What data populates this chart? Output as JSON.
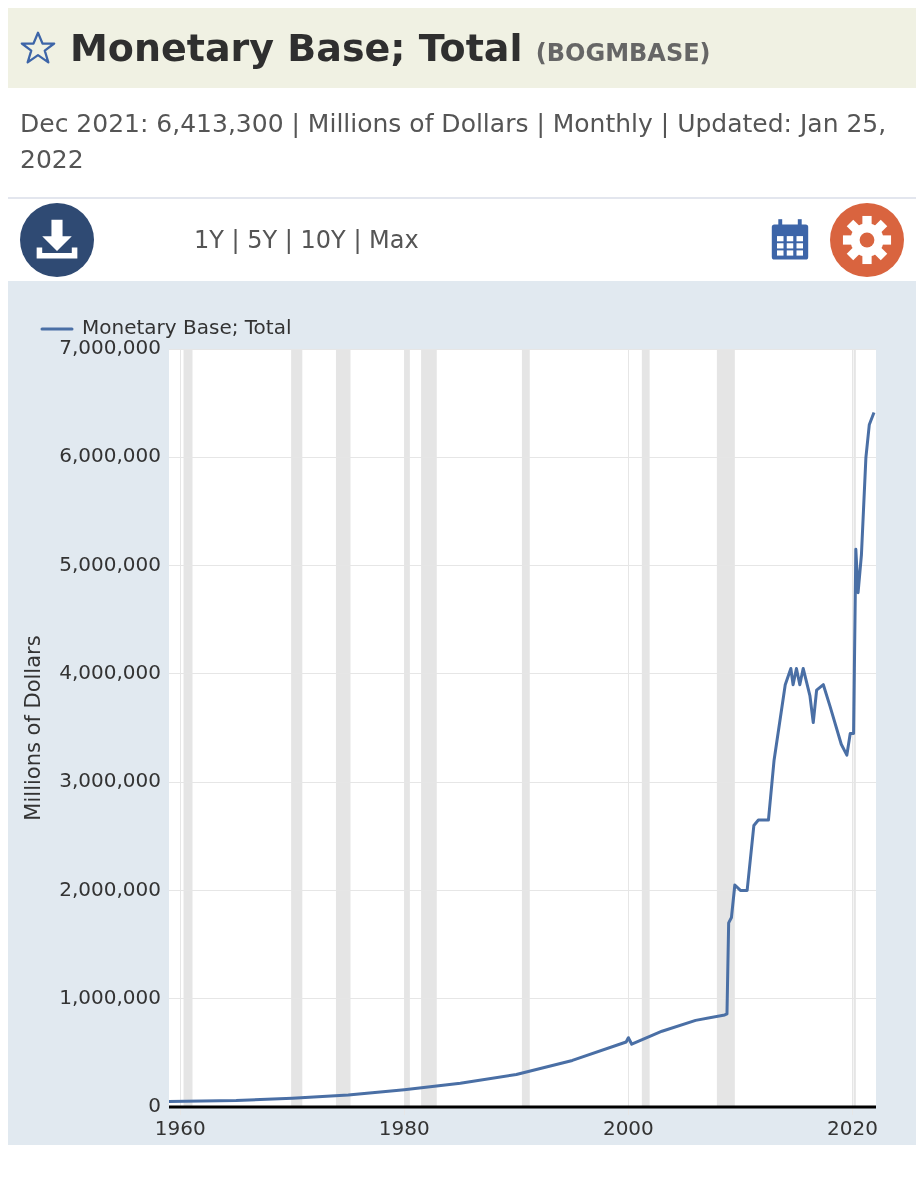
{
  "chart_data": {
    "type": "line",
    "title": "Monetary Base; Total",
    "subtitle": "Dec 2021: 6,413,300 | Millions of Dollars | Monthly | Updated: Jan 25, 2022",
    "annotations": [
      "(BOGMBASE)",
      "1Y | 5Y | 10Y | Max"
    ],
    "ylabel": "Millions of Dollars",
    "xlim": [
      1959,
      2022.1
    ],
    "xticks": [
      1960,
      1980,
      2000,
      2020
    ],
    "ylim": [
      0,
      7000000
    ],
    "yticks": [
      {
        "value": 0,
        "label": "0"
      },
      {
        "value": 1000000,
        "label": "1,000,000"
      },
      {
        "value": 2000000,
        "label": "2,000,000"
      },
      {
        "value": 3000000,
        "label": "3,000,000"
      },
      {
        "value": 4000000,
        "label": "4,000,000"
      },
      {
        "value": 5000000,
        "label": "5,000,000"
      },
      {
        "value": 6000000,
        "label": "6,000,000"
      },
      {
        "value": 7000000,
        "label": "7,000,000"
      }
    ],
    "grid": true,
    "legend": "top left",
    "bands": [
      {
        "axis": "x",
        "from": 1960.3,
        "to": 1961.1,
        "color": "#e5e5e5"
      },
      {
        "axis": "x",
        "from": 1969.9,
        "to": 1970.9,
        "color": "#e5e5e5"
      },
      {
        "axis": "x",
        "from": 1973.9,
        "to": 1975.2,
        "color": "#e5e5e5"
      },
      {
        "axis": "x",
        "from": 1980.0,
        "to": 1980.5,
        "color": "#e5e5e5"
      },
      {
        "axis": "x",
        "from": 1981.5,
        "to": 1982.9,
        "color": "#e5e5e5"
      },
      {
        "axis": "x",
        "from": 1990.5,
        "to": 1991.2,
        "color": "#e5e5e5"
      },
      {
        "axis": "x",
        "from": 2001.2,
        "to": 2001.9,
        "color": "#e5e5e5"
      },
      {
        "axis": "x",
        "from": 2007.9,
        "to": 2009.5,
        "color": "#e5e5e5"
      },
      {
        "axis": "x",
        "from": 2020.1,
        "to": 2020.3,
        "color": "#e5e5e5"
      }
    ],
    "series": [
      {
        "name": "Monetary Base; Total",
        "color": "#4a6fa5",
        "x": [
          1959,
          1965,
          1970,
          1975,
          1980,
          1985,
          1990,
          1995,
          1999.8,
          2000.0,
          2000.3,
          2003,
          2006,
          2008.6,
          2008.8,
          2008.95,
          2009.2,
          2009.5,
          2010,
          2010.6,
          2011.2,
          2011.6,
          2012.5,
          2013,
          2014,
          2014.5,
          2014.7,
          2015,
          2015.3,
          2015.6,
          2016.2,
          2016.5,
          2016.8,
          2017.4,
          2018,
          2019,
          2019.5,
          2019.8,
          2020.1,
          2020.3,
          2020.5,
          2020.8,
          2021.2,
          2021.5,
          2021.92
        ],
        "values": [
          50000,
          60000,
          80000,
          110000,
          160000,
          220000,
          300000,
          430000,
          600000,
          640000,
          580000,
          700000,
          800000,
          850000,
          860000,
          1700000,
          1750000,
          2050000,
          2000000,
          2000000,
          2600000,
          2650000,
          2650000,
          3200000,
          3900000,
          4050000,
          3900000,
          4050000,
          3900000,
          4050000,
          3800000,
          3550000,
          3850000,
          3900000,
          3700000,
          3350000,
          3250000,
          3450000,
          3450000,
          5150000,
          4750000,
          5100000,
          6000000,
          6300000,
          6413300
        ]
      }
    ]
  }
}
